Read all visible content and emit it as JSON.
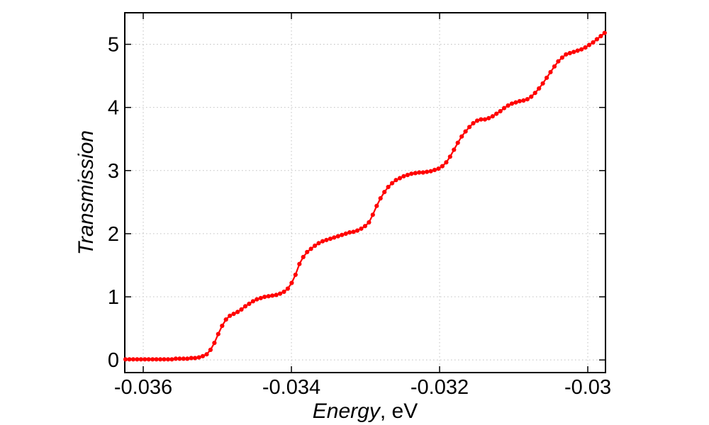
{
  "chart_data": {
    "type": "line",
    "xlabel": "Energy, eV",
    "xlabel_italic": "Energy",
    "xlabel_suffix": ", eV",
    "ylabel": "Transmission",
    "x_tick_labels": [
      "-0.036",
      "-0.034",
      "-0.032",
      "-0.03"
    ],
    "x_tick_values": [
      -0.036,
      -0.034,
      -0.032,
      -0.03
    ],
    "y_tick_labels": [
      "0",
      "1",
      "2",
      "3",
      "4",
      "5"
    ],
    "y_tick_values": [
      0,
      1,
      2,
      3,
      4,
      5
    ],
    "xlim": [
      -0.036249,
      -0.029761
    ],
    "ylim": [
      -0.2,
      5.5
    ],
    "grid": true,
    "legend": false,
    "colors": {
      "curve": "#ff0000",
      "grid": "#c0c0c0",
      "frame": "#000000",
      "background": "#ffffff"
    },
    "series": [
      {
        "name": "transmission-vs-energy",
        "color": "#ff0000",
        "marker": "filled-circle",
        "line_style": "solid",
        "points": 125,
        "energy_start_eV": -0.036239,
        "energy_step_eV": 5.215e-05,
        "transmission": [
          0.01,
          0.01,
          0.01,
          0.01,
          0.01,
          0.01,
          0.01,
          0.01,
          0.01,
          0.01,
          0.01,
          0.01,
          0.01,
          0.02,
          0.02,
          0.02,
          0.02,
          0.03,
          0.03,
          0.04,
          0.06,
          0.09,
          0.16,
          0.27,
          0.41,
          0.54,
          0.64,
          0.7,
          0.73,
          0.76,
          0.8,
          0.85,
          0.89,
          0.93,
          0.96,
          0.98,
          1.0,
          1.01,
          1.02,
          1.03,
          1.05,
          1.08,
          1.13,
          1.22,
          1.35,
          1.52,
          1.63,
          1.71,
          1.76,
          1.81,
          1.85,
          1.88,
          1.9,
          1.92,
          1.94,
          1.96,
          1.98,
          2.0,
          2.02,
          2.03,
          2.05,
          2.08,
          2.12,
          2.18,
          2.3,
          2.44,
          2.56,
          2.66,
          2.74,
          2.8,
          2.85,
          2.88,
          2.91,
          2.93,
          2.95,
          2.96,
          2.97,
          2.97,
          2.98,
          2.99,
          3.01,
          3.03,
          3.07,
          3.13,
          3.22,
          3.33,
          3.44,
          3.54,
          3.62,
          3.69,
          3.75,
          3.79,
          3.81,
          3.81,
          3.83,
          3.86,
          3.9,
          3.94,
          3.99,
          4.03,
          4.06,
          4.08,
          4.1,
          4.11,
          4.13,
          4.17,
          4.23,
          4.3,
          4.38,
          4.47,
          4.56,
          4.65,
          4.73,
          4.79,
          4.84,
          4.86,
          4.88,
          4.9,
          4.92,
          4.95,
          4.99,
          5.03,
          5.08,
          5.13,
          5.18
        ]
      }
    ]
  }
}
